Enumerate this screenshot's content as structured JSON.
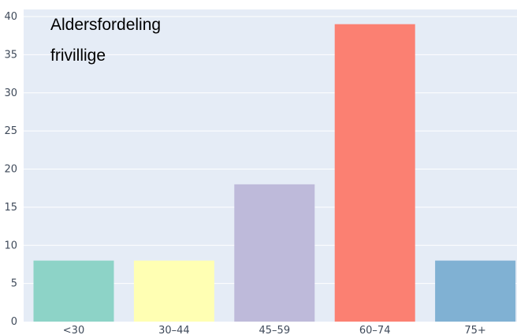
{
  "chart_data": {
    "type": "bar",
    "title_lines": [
      "Aldersfordeling",
      "frivillige"
    ],
    "categories": [
      "<30",
      "30–44",
      "45–59",
      "60–74",
      "75+"
    ],
    "values": [
      8,
      8,
      18,
      39,
      8
    ],
    "colors": [
      "#8dd3c7",
      "#ffffb3",
      "#bebada",
      "#fb8072",
      "#80b1d3"
    ],
    "ylim": [
      0,
      40
    ],
    "y_ticks": [
      0,
      5,
      10,
      15,
      20,
      25,
      30,
      35,
      40
    ],
    "grid": true,
    "plot_background": "#e5ecf6",
    "grid_color": "#ffffff"
  }
}
